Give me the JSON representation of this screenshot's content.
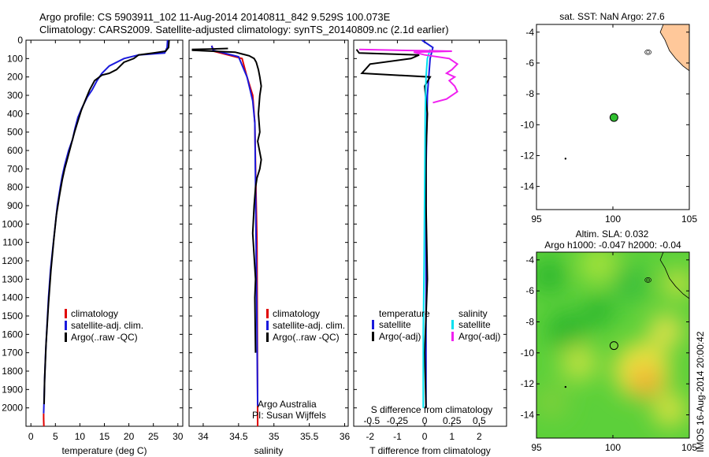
{
  "header": {
    "title_line1": "Argo profile: CS 5903911_102 11-Aug-2014 20140811_842 9.529S 100.073E",
    "title_line2": "Climatology: CARS2009. Satellite-adjusted climatology: synTS_20140809.nc (2.1d earlier)"
  },
  "colors": {
    "climatology": "#e00000",
    "satellite_adj": "#1a1adc",
    "argo": "#000000",
    "satellite_diff": "#00e0f0",
    "argo_adj_diff": "#f020f0",
    "land": "#ffc89a",
    "sst_marker": "#30c030"
  },
  "side_label": "IMOS 16-Aug-2014 20:00:42",
  "chart_data": [
    {
      "type": "line",
      "name": "temperature-profile",
      "xlabel": "temperature (deg C)",
      "ylabel": "",
      "xlim": [
        -1,
        31
      ],
      "ylim": [
        2100,
        0
      ],
      "xticks": [
        0,
        5,
        10,
        15,
        20,
        25,
        30
      ],
      "yticks": [
        0,
        100,
        200,
        300,
        400,
        500,
        600,
        700,
        800,
        900,
        1000,
        1100,
        1200,
        1300,
        1400,
        1500,
        1600,
        1700,
        1800,
        1900,
        2000
      ],
      "legend": [
        "climatology",
        "satellite-adj. clim.",
        "Argo(..raw -QC)"
      ],
      "legend_position": "lower-center",
      "series": [
        {
          "name": "climatology",
          "color_key": "climatology",
          "x": [
            2.6,
            2.6,
            2.65
          ],
          "y": [
            2030,
            2060,
            2100
          ]
        },
        {
          "name": "satellite-adj. clim.",
          "color_key": "satellite_adj",
          "x": [
            27.9,
            27.8,
            27.3,
            22,
            19,
            16,
            14.5,
            13.5,
            12.5,
            11.5,
            10.4,
            9.6,
            9.0,
            8.5,
            7.7,
            6.9,
            6.4,
            6.0,
            5.4,
            5.0,
            4.6,
            4.0,
            3.6,
            3.3,
            3.0,
            2.8,
            2.7,
            2.6
          ],
          "y": [
            0,
            40,
            70,
            80,
            100,
            140,
            180,
            220,
            270,
            310,
            370,
            420,
            480,
            540,
            600,
            680,
            740,
            800,
            900,
            1000,
            1100,
            1250,
            1400,
            1550,
            1700,
            1850,
            1950,
            2030
          ]
        },
        {
          "name": "Argo(..raw -QC)",
          "color_key": "argo",
          "x": [
            28.2,
            28.1,
            27.5,
            25,
            22,
            21,
            19,
            17.5,
            16,
            14.5,
            13,
            12,
            11.2,
            10.3,
            9.6,
            8.9,
            8.3,
            7.5,
            6.9,
            6.4,
            5.8,
            5.2,
            4.7,
            4.1,
            3.6,
            3.1,
            2.8,
            2.7
          ],
          "y": [
            0,
            40,
            60,
            70,
            80,
            100,
            120,
            160,
            180,
            190,
            220,
            270,
            320,
            380,
            440,
            500,
            560,
            640,
            700,
            760,
            850,
            950,
            1080,
            1250,
            1430,
            1650,
            1850,
            1980
          ]
        }
      ]
    },
    {
      "type": "line",
      "name": "salinity-profile",
      "xlabel": "salinity",
      "ylabel": "",
      "xlim": [
        33.8,
        36.05
      ],
      "ylim": [
        2100,
        0
      ],
      "xticks": [
        34,
        34.5,
        35,
        35.5,
        36
      ],
      "legend": [
        "climatology",
        "satellite-adj. clim.",
        "Argo(..raw -QC)"
      ],
      "legend_position": "lower-right",
      "annotations": [
        "Argo Australia",
        "PI: Susan Wijffels"
      ],
      "series": [
        {
          "name": "climatology",
          "color_key": "climatology",
          "x": [
            34.12,
            34.15,
            34.55,
            34.62,
            34.7,
            34.73,
            34.74,
            34.76,
            34.77
          ],
          "y": [
            30,
            60,
            100,
            200,
            300,
            450,
            700,
            1100,
            2100
          ]
        },
        {
          "name": "satellite-adj. clim.",
          "color_key": "satellite_adj",
          "x": [
            34.12,
            34.14,
            34.5,
            34.62,
            34.7,
            34.73,
            34.74,
            34.75,
            34.77
          ],
          "y": [
            30,
            55,
            90,
            200,
            330,
            450,
            800,
            1200,
            1990
          ]
        },
        {
          "name": "Argo(..raw -QC)",
          "color_key": "argo",
          "x": [
            34.35,
            34.1,
            33.85,
            33.85,
            34.45,
            34.55,
            34.65,
            34.72,
            34.75,
            34.78,
            34.8,
            34.82,
            34.8,
            34.78,
            34.8,
            34.77,
            34.82,
            34.8,
            34.76,
            34.74,
            34.72,
            34.7,
            34.74,
            34.73,
            34.74
          ],
          "y": [
            45,
            48,
            50,
            55,
            65,
            75,
            85,
            100,
            120,
            160,
            200,
            250,
            300,
            400,
            500,
            550,
            650,
            700,
            750,
            800,
            900,
            1050,
            1300,
            1400,
            1700
          ]
        }
      ]
    },
    {
      "type": "line",
      "name": "difference-profile",
      "xlabel": "T difference from climatology",
      "xlabel2": "S difference from climatology",
      "xlim": [
        -2.6,
        3.0
      ],
      "ylim": [
        2100,
        0
      ],
      "xticks": [
        -2,
        -1,
        0,
        1,
        2
      ],
      "xticks2_labels": [
        "-0.5",
        "-0.25",
        "0",
        "0.25",
        "0.5"
      ],
      "legend": {
        "temperature_heading": "temperature",
        "salinity_heading": "salinity",
        "t_items": [
          "satellite",
          "Argo(-adj)"
        ],
        "s_items": [
          "satellite",
          "Argo(-adj)"
        ]
      },
      "series": [
        {
          "name": "T satellite",
          "color_key": "satellite_adj",
          "x": [
            -0.1,
            0.3,
            0.2,
            0.1,
            0.05,
            0.05,
            0.05
          ],
          "y": [
            0,
            40,
            100,
            300,
            700,
            1300,
            2000
          ]
        },
        {
          "name": "T Argo(-adj)",
          "color_key": "argo",
          "x": [
            -2.5,
            -2.4,
            -0.2,
            -0.5,
            -2.0,
            -2.3,
            0.2,
            0.0,
            0.1,
            0.05,
            0.05,
            0.1,
            0.0,
            0.05
          ],
          "y": [
            50,
            70,
            80,
            100,
            130,
            180,
            200,
            250,
            400,
            600,
            900,
            1300,
            1700,
            2000
          ]
        },
        {
          "name": "S satellite",
          "color_key": "satellite_diff",
          "x": [
            0.2,
            0.1,
            0.05,
            0.02,
            0.0,
            -0.02,
            -0.05,
            -0.05
          ],
          "y": [
            50,
            100,
            200,
            400,
            800,
            1200,
            1600,
            2000
          ]
        },
        {
          "name": "S Argo(-adj)",
          "color_key": "argo_adj_diff",
          "x": [
            -2.4,
            -1.0,
            0.3,
            1.0,
            -0.4,
            0.0,
            0.9,
            1.2,
            1.0,
            0.8,
            1.1,
            0.9,
            1.1,
            1.2,
            0.8,
            0.3
          ],
          "y": [
            50,
            55,
            58,
            60,
            65,
            80,
            100,
            130,
            160,
            180,
            200,
            220,
            250,
            280,
            320,
            340
          ]
        }
      ]
    },
    {
      "type": "scatter",
      "name": "sst-map",
      "title": "sat. SST: NaN Argo: 27.6",
      "xlim": [
        95,
        105
      ],
      "ylim": [
        -15.5,
        -3.5
      ],
      "xticks": [
        95,
        100,
        105
      ],
      "yticks": [
        -4,
        -6,
        -8,
        -10,
        -12,
        -14
      ],
      "points": [
        {
          "x": 100.07,
          "y": -9.53
        }
      ]
    },
    {
      "type": "heatmap",
      "name": "sla-map",
      "title_line1": "Altim. SLA: 0.032",
      "title_line2": "Argo h1000: -0.047 h2000: -0.04",
      "xlim": [
        95,
        105
      ],
      "ylim": [
        -15.5,
        -3.5
      ],
      "xticks": [
        95,
        100,
        105
      ],
      "yticks": [
        -4,
        -6,
        -8,
        -10,
        -12,
        -14
      ],
      "points": [
        {
          "x": 100.07,
          "y": -9.53
        }
      ]
    }
  ]
}
